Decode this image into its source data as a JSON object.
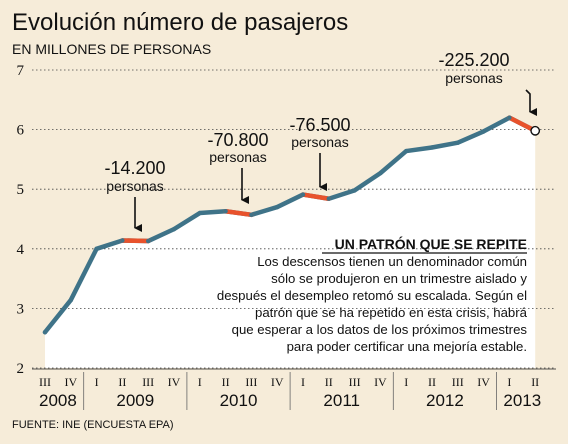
{
  "chart_data": {
    "type": "line",
    "title": "Evolución número de pasajeros",
    "subtitle": "EN MILLONES DE PERSONAS",
    "source": "FUENTE: INE (ENCUESTA EPA)",
    "ylim": [
      2,
      7
    ],
    "yticks": [
      "2",
      "3",
      "4",
      "5",
      "6",
      "7"
    ],
    "grid": true,
    "quarters": [
      "III",
      "IV",
      "I",
      "II",
      "III",
      "IV",
      "I",
      "II",
      "III",
      "IV",
      "I",
      "II",
      "III",
      "IV",
      "I",
      "II",
      "III",
      "IV",
      "I",
      "II"
    ],
    "years": [
      {
        "label": "2008",
        "from": 0,
        "to": 1
      },
      {
        "label": "2009",
        "from": 2,
        "to": 5
      },
      {
        "label": "2010",
        "from": 6,
        "to": 9
      },
      {
        "label": "2011",
        "from": 10,
        "to": 13
      },
      {
        "label": "2012",
        "from": 14,
        "to": 17
      },
      {
        "label": "2013",
        "from": 18,
        "to": 19
      }
    ],
    "values": [
      2.6,
      3.14,
      4.0,
      4.14,
      4.13,
      4.33,
      4.6,
      4.63,
      4.57,
      4.7,
      4.91,
      4.84,
      4.98,
      5.27,
      5.64,
      5.7,
      5.78,
      5.97,
      6.2,
      5.98
    ],
    "decrease_segments": [
      [
        3,
        4
      ],
      [
        7,
        8
      ],
      [
        10,
        11
      ],
      [
        18,
        19
      ]
    ],
    "colors": {
      "line": "#3f7388",
      "highlight": "#e8522c",
      "area": "#ffffff",
      "grid": "#444444",
      "background": "#f6ecd9"
    },
    "annotations": [
      {
        "value": "-14.200",
        "unit": "personas",
        "segment": 0
      },
      {
        "value": "-70.800",
        "unit": "personas",
        "segment": 1
      },
      {
        "value": "-76.500",
        "unit": "personas",
        "segment": 2
      },
      {
        "value": "-225.200",
        "unit": "personas",
        "segment": 3
      }
    ],
    "panel": {
      "title": "UN PATRÓN QUE SE REPITE",
      "lines": [
        "Los descensos tienen un denominador común",
        "sólo se produjeron en un trimestre aislado y",
        "después el desempleo retomó su escalada. Según el",
        "patrón que se ha repetido en esta crisis, habrá",
        "que esperar a los datos de los próximos trimestres",
        "para poder certificar una mejoría estable."
      ]
    }
  }
}
